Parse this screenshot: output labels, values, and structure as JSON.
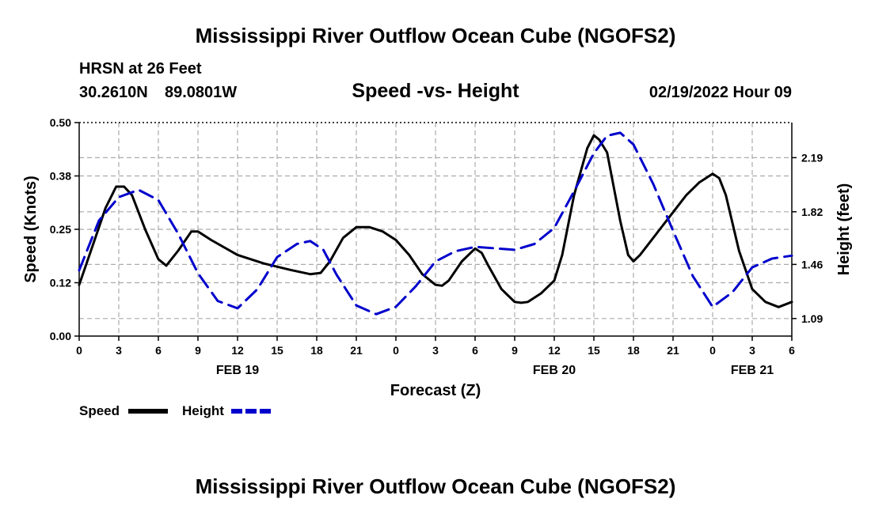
{
  "page": {
    "title_top": "Mississippi River Outflow Ocean Cube (NGOFS2)",
    "title_bottom": "Mississippi River Outflow Ocean Cube (NGOFS2)",
    "station": "HRSN at 26 Feet",
    "latitude": "30.2610N",
    "longitude": "89.0801W",
    "datetime": "02/19/2022 Hour 09"
  },
  "chart_data": {
    "type": "line",
    "title": "Speed -vs- Height",
    "xlabel": "Forecast (Z)",
    "ylabel": "Speed (Knots)",
    "y2label": "Height (feet)",
    "x_range_hours": [
      0,
      54
    ],
    "ylim": [
      0,
      0.5
    ],
    "y2lim": [
      0.97,
      2.43
    ],
    "y_ticks": [
      "0.00",
      "0.12",
      "0.25",
      "0.38",
      "0.50"
    ],
    "y_tick_values": [
      0,
      0.125,
      0.25,
      0.375,
      0.5
    ],
    "y2_ticks": [
      "1.09",
      "1.46",
      "1.82",
      "2.19"
    ],
    "y2_tick_values": [
      1.09,
      1.46,
      1.82,
      2.19
    ],
    "x_ticks": [
      "0",
      "3",
      "6",
      "9",
      "12",
      "15",
      "18",
      "21",
      "0",
      "3",
      "6",
      "9",
      "12",
      "15",
      "18",
      "21",
      "0",
      "3",
      "6"
    ],
    "x_tick_values": [
      0,
      3,
      6,
      9,
      12,
      15,
      18,
      21,
      24,
      27,
      30,
      33,
      36,
      39,
      42,
      45,
      48,
      51,
      54
    ],
    "day_labels": [
      {
        "label": "FEB 19",
        "hour": 12
      },
      {
        "label": "FEB 20",
        "hour": 36
      },
      {
        "label": "FEB 21",
        "hour": 51
      }
    ],
    "grid": true,
    "series": [
      {
        "name": "Speed",
        "color": "#000000",
        "axis": "left",
        "dash": "solid",
        "x": [
          0,
          1,
          2,
          2.8,
          3.4,
          4,
          5,
          6,
          6.6,
          7.5,
          8.5,
          9,
          10,
          12,
          14,
          16,
          17.5,
          18.3,
          19,
          20,
          21,
          22,
          23,
          24,
          25,
          26,
          27,
          27.5,
          28,
          29,
          30,
          30.5,
          31,
          32,
          33,
          33.5,
          34,
          35,
          36,
          36.6,
          37.5,
          38.5,
          39,
          39.4,
          40,
          40.5,
          41,
          41.6,
          42,
          42.5,
          43,
          44,
          45,
          46,
          47,
          48,
          48.5,
          49,
          50,
          51,
          52,
          53,
          54
        ],
        "y": [
          0.12,
          0.21,
          0.3,
          0.35,
          0.35,
          0.33,
          0.25,
          0.18,
          0.165,
          0.2,
          0.245,
          0.245,
          0.225,
          0.19,
          0.17,
          0.155,
          0.145,
          0.148,
          0.175,
          0.23,
          0.255,
          0.255,
          0.245,
          0.225,
          0.19,
          0.145,
          0.12,
          0.118,
          0.13,
          0.175,
          0.205,
          0.195,
          0.165,
          0.11,
          0.08,
          0.078,
          0.08,
          0.1,
          0.13,
          0.19,
          0.33,
          0.44,
          0.47,
          0.46,
          0.43,
          0.35,
          0.27,
          0.19,
          0.175,
          0.19,
          0.21,
          0.25,
          0.29,
          0.33,
          0.36,
          0.38,
          0.37,
          0.33,
          0.2,
          0.11,
          0.08,
          0.068,
          0.08
        ]
      },
      {
        "name": "Height",
        "color": "#0000cc",
        "axis": "right",
        "dash": "dashed",
        "x": [
          0,
          1.5,
          3,
          4.5,
          6,
          7.5,
          9,
          10.5,
          12,
          13.5,
          15,
          16.5,
          17.5,
          18.5,
          19.5,
          21,
          22.5,
          24,
          25.5,
          27,
          28.5,
          30,
          31.5,
          33,
          34.5,
          36,
          37.5,
          39,
          40,
          41,
          42,
          43.5,
          45,
          46.5,
          48,
          49.5,
          51,
          52.5,
          54
        ],
        "y": [
          1.42,
          1.76,
          1.92,
          1.97,
          1.9,
          1.67,
          1.4,
          1.21,
          1.16,
          1.29,
          1.51,
          1.6,
          1.62,
          1.56,
          1.39,
          1.18,
          1.12,
          1.17,
          1.31,
          1.48,
          1.55,
          1.58,
          1.57,
          1.56,
          1.6,
          1.71,
          1.96,
          2.22,
          2.34,
          2.36,
          2.28,
          2.01,
          1.69,
          1.38,
          1.17,
          1.27,
          1.44,
          1.5,
          1.52
        ]
      }
    ],
    "legend": [
      {
        "label": "Speed",
        "color": "#000000",
        "dash": "solid"
      },
      {
        "label": "Height",
        "color": "#0000cc",
        "dash": "dashed"
      }
    ],
    "legend_position": "bottom-left"
  }
}
